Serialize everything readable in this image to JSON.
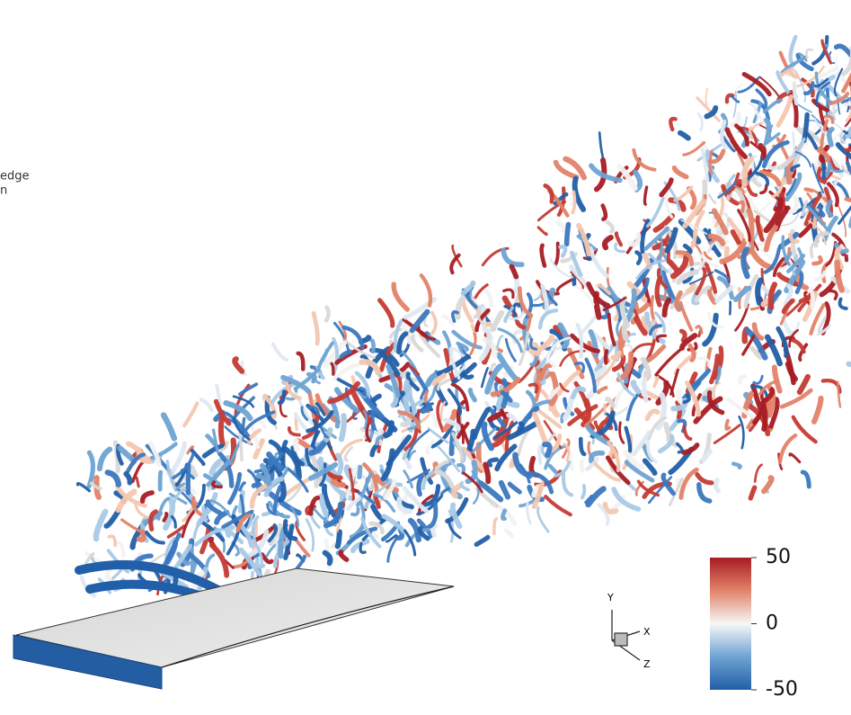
{
  "caption_fragments": [
    "edge",
    "n"
  ],
  "colorbar": {
    "range": [
      -50,
      50
    ],
    "ticks": [
      50,
      0,
      -50
    ]
  },
  "axes_triad": {
    "y": "Y",
    "x": "X",
    "z": "Z"
  }
}
